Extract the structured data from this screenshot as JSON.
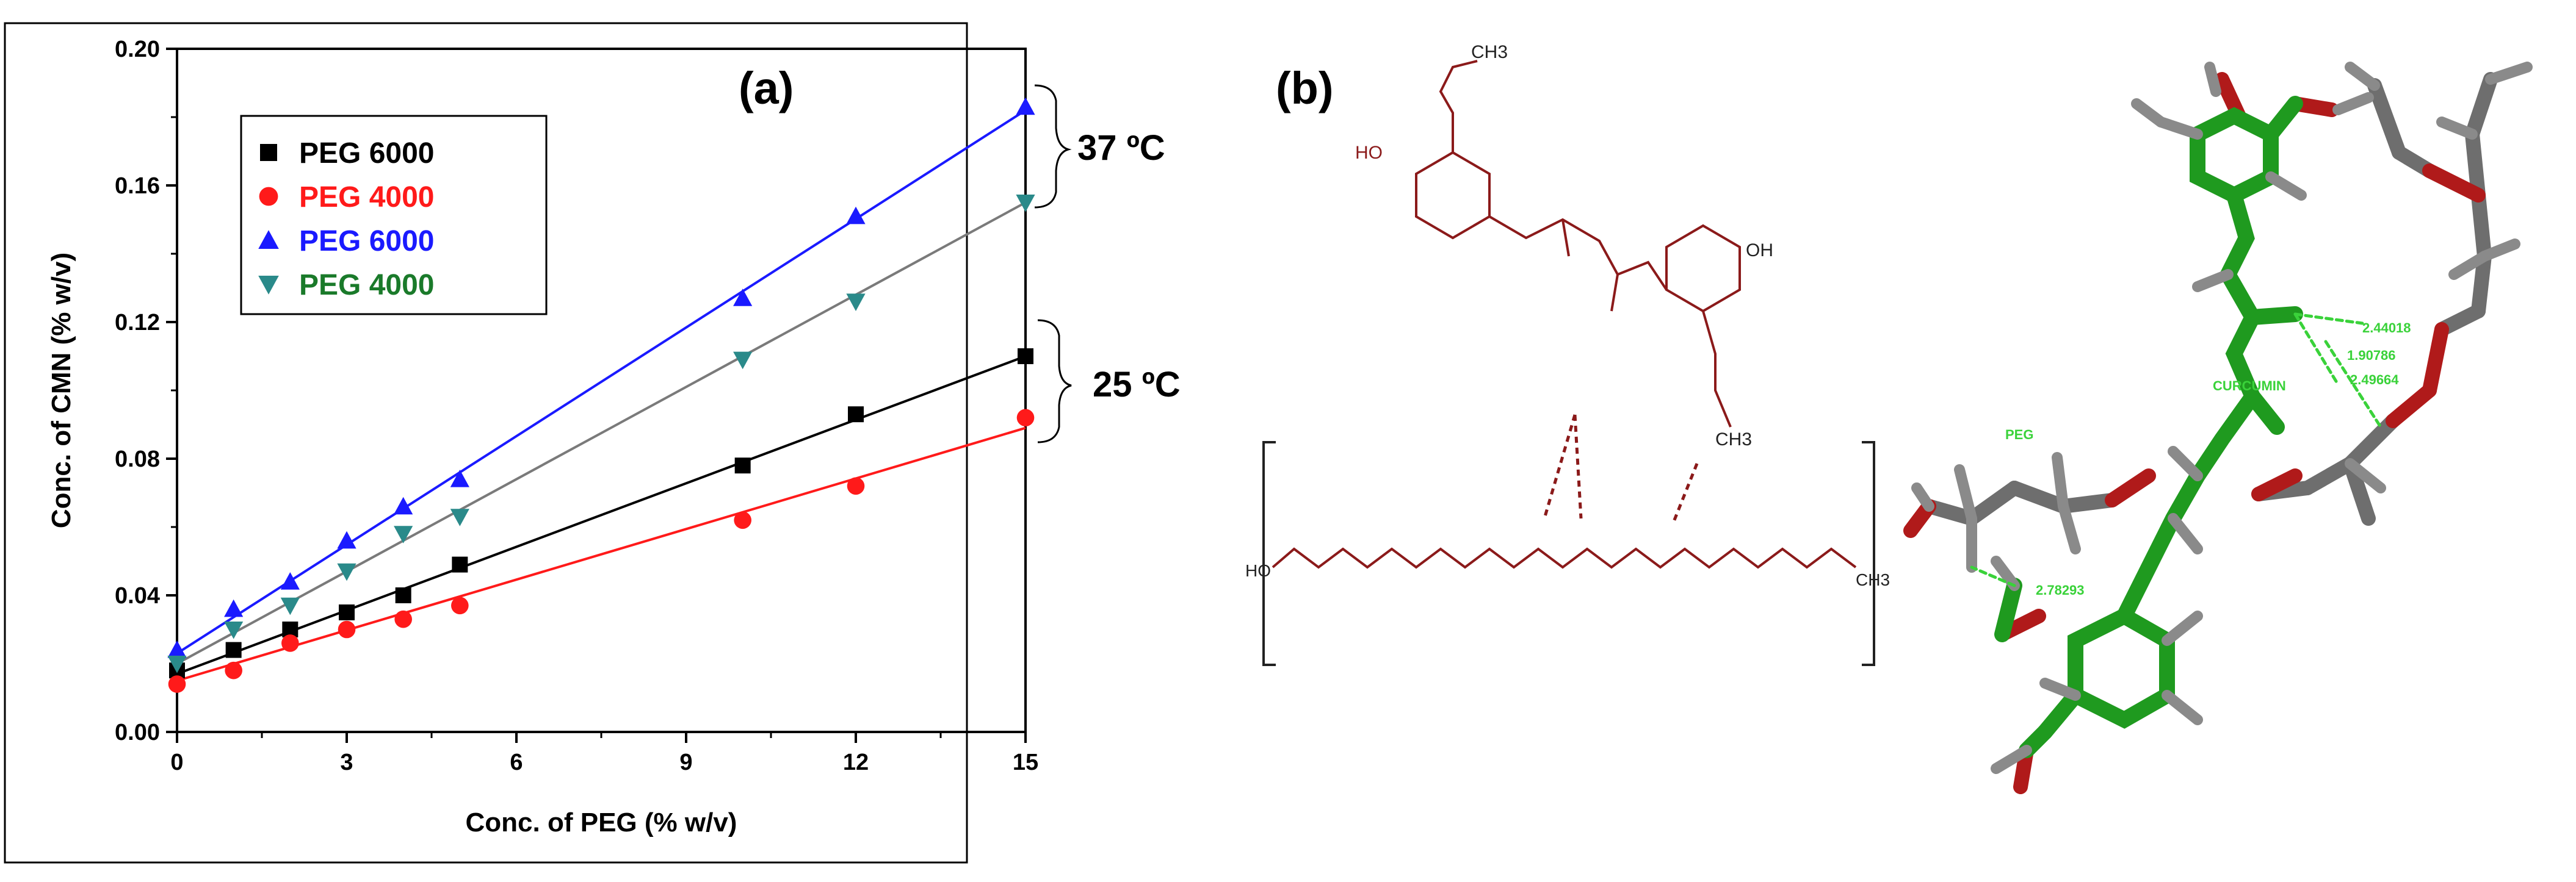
{
  "panel_a_label": "(a)",
  "panel_b_label": "(b)",
  "temp_label_high": "37 ºC",
  "temp_label_low": "25 ºC",
  "colors": {
    "black": "#000000",
    "red": "#ff1a1a",
    "blue": "#1a1aff",
    "teal": "#2a8a8a",
    "legend_green": "#1a7a2a",
    "line_grey": "#7a7a7a",
    "bond_dark": "#8b1a1a",
    "mol_green": "#1f9a1f",
    "mol_grey": "#6e6e6e",
    "mol_red": "#b01a1a",
    "label_green": "#3ad23a"
  },
  "chart_data": {
    "type": "scatter",
    "xlabel": "Conc. of PEG (% w/v)",
    "ylabel": "Conc. of CMN (% w/v)",
    "xlim": [
      0,
      15
    ],
    "ylim": [
      0,
      0.2
    ],
    "x_ticks": [
      "0",
      "3",
      "6",
      "9",
      "12",
      "15"
    ],
    "y_ticks": [
      "0.00",
      "0.04",
      "0.08",
      "0.12",
      "0.16",
      "0.20"
    ],
    "legend_position": "top-left",
    "series": [
      {
        "name": "PEG 6000",
        "marker": "square",
        "color": "#000000",
        "line_color": "#000000",
        "x": [
          0,
          1,
          2,
          3,
          4,
          5,
          10,
          12,
          15
        ],
        "y": [
          0.018,
          0.024,
          0.03,
          0.035,
          0.04,
          0.049,
          0.078,
          0.093,
          0.11
        ],
        "fit": [
          0.017,
          0.11
        ]
      },
      {
        "name": "PEG 4000",
        "marker": "circle",
        "color": "#ff1a1a",
        "line_color": "#ff1a1a",
        "x": [
          0,
          1,
          2,
          3,
          4,
          5,
          10,
          12,
          15
        ],
        "y": [
          0.014,
          0.018,
          0.026,
          0.03,
          0.033,
          0.037,
          0.062,
          0.072,
          0.092
        ],
        "fit": [
          0.015,
          0.089
        ]
      },
      {
        "name": "PEG 6000",
        "marker": "triangle-up",
        "color": "#1a1aff",
        "line_color": "#1a1aff",
        "x": [
          0,
          1,
          2,
          3,
          4,
          5,
          10,
          12,
          15
        ],
        "y": [
          0.024,
          0.036,
          0.044,
          0.056,
          0.066,
          0.074,
          0.127,
          0.151,
          0.183
        ],
        "fit": [
          0.023,
          0.182
        ]
      },
      {
        "name": "PEG 4000",
        "marker": "triangle-down",
        "color": "#2a8a8a",
        "line_color": "#7a7a7a",
        "x": [
          0,
          1,
          2,
          3,
          4,
          5,
          10,
          12,
          15
        ],
        "y": [
          0.02,
          0.03,
          0.037,
          0.047,
          0.058,
          0.063,
          0.109,
          0.126,
          0.155
        ],
        "fit": [
          0.02,
          0.155
        ]
      }
    ],
    "legend": [
      {
        "label": "PEG 6000",
        "marker": "square",
        "color": "#000000"
      },
      {
        "label": "PEG 4000",
        "marker": "circle",
        "color": "#ff1a1a"
      },
      {
        "label": "PEG 6000",
        "marker": "triangle-up",
        "color": "#1a1aff"
      },
      {
        "label": "PEG 4000",
        "marker": "triangle-down",
        "color": "#1a7a2a"
      }
    ]
  },
  "molecule_2d_labels": {
    "oh_top_left": "HO",
    "oh_right": "OH",
    "methyl_top": "CH3",
    "methyl_right": "CH3",
    "methyl_chain": "CH3",
    "ho_chain": "HO"
  },
  "molecule_3d_labels": {
    "curcumin": "CURCUMIN",
    "peg": "PEG",
    "dist_1": "2.78293",
    "dist_2": "2.44018",
    "dist_3": "1.90786",
    "dist_4": "2.49664"
  }
}
